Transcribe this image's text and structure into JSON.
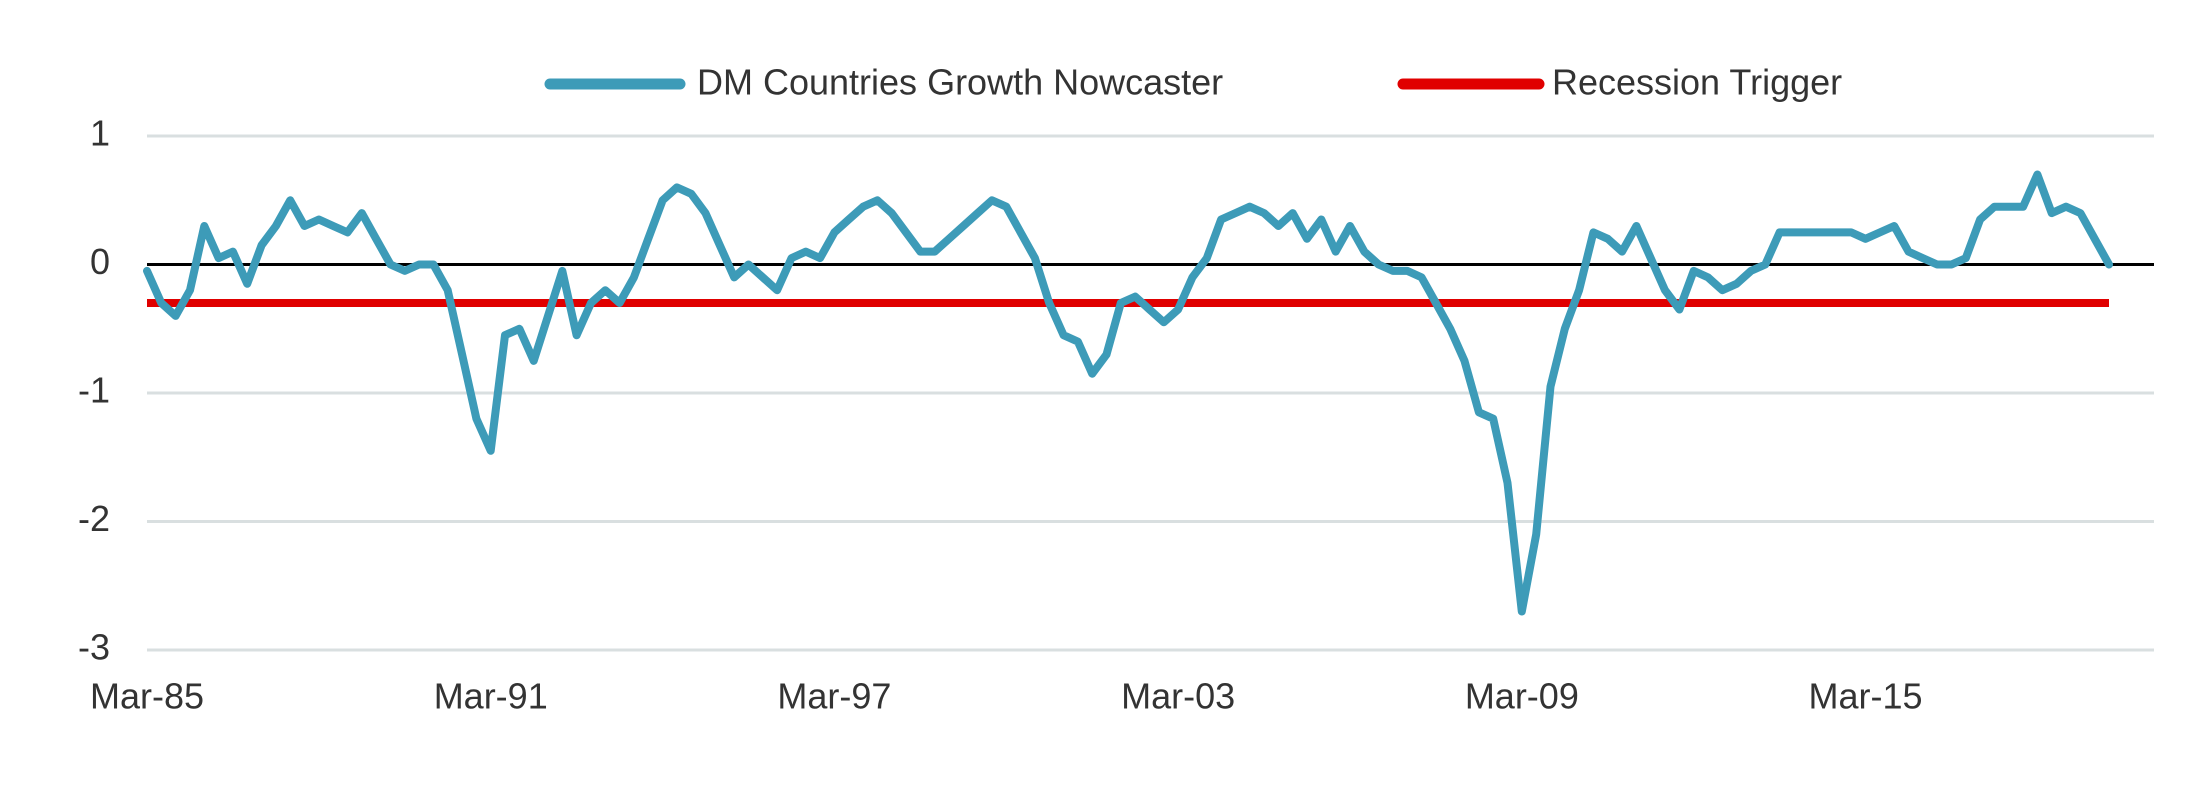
{
  "chart_data": {
    "type": "line",
    "categories": [
      "Mar-85",
      null,
      null,
      null,
      null,
      null,
      null,
      null,
      null,
      null,
      null,
      null,
      null,
      null,
      null,
      null,
      null,
      null,
      null,
      null,
      null,
      null,
      null,
      null,
      "Mar-91",
      null,
      null,
      null,
      null,
      null,
      null,
      null,
      null,
      null,
      null,
      null,
      null,
      null,
      null,
      null,
      null,
      null,
      null,
      null,
      null,
      null,
      null,
      null,
      "Mar-97",
      null,
      null,
      null,
      null,
      null,
      null,
      null,
      null,
      null,
      null,
      null,
      null,
      null,
      null,
      null,
      null,
      null,
      null,
      null,
      null,
      null,
      null,
      null,
      "Mar-03",
      null,
      null,
      null,
      null,
      null,
      null,
      null,
      null,
      null,
      null,
      null,
      null,
      null,
      null,
      null,
      null,
      null,
      null,
      null,
      null,
      null,
      null,
      null,
      "Mar-09",
      null,
      null,
      null,
      null,
      null,
      null,
      null,
      null,
      null,
      null,
      null,
      null,
      null,
      null,
      null,
      null,
      null,
      null,
      null,
      null,
      null,
      null,
      null,
      "Mar-15",
      null,
      null,
      null,
      null,
      null,
      null,
      null,
      null,
      null,
      null,
      null,
      null,
      null,
      null,
      null,
      null,
      null
    ],
    "series": [
      {
        "name": "DM Countries Growth Nowcaster",
        "color": "#3d9bb8",
        "values": [
          -0.05,
          -0.3,
          -0.4,
          -0.2,
          0.3,
          0.05,
          0.1,
          -0.15,
          0.15,
          0.3,
          0.5,
          0.3,
          0.35,
          0.3,
          0.25,
          0.4,
          0.2,
          0.0,
          -0.05,
          0.0,
          0.0,
          -0.2,
          -0.7,
          -1.2,
          -1.45,
          -0.55,
          -0.5,
          -0.75,
          -0.4,
          -0.05,
          -0.55,
          -0.3,
          -0.2,
          -0.3,
          -0.1,
          0.2,
          0.5,
          0.6,
          0.55,
          0.4,
          0.15,
          -0.1,
          0.0,
          -0.1,
          -0.2,
          0.05,
          0.1,
          0.05,
          0.25,
          0.35,
          0.45,
          0.5,
          0.4,
          0.25,
          0.1,
          0.1,
          0.2,
          0.3,
          0.4,
          0.5,
          0.45,
          0.25,
          0.05,
          -0.3,
          -0.55,
          -0.6,
          -0.85,
          -0.7,
          -0.3,
          -0.25,
          -0.35,
          -0.45,
          -0.35,
          -0.1,
          0.05,
          0.35,
          0.4,
          0.45,
          0.4,
          0.3,
          0.4,
          0.2,
          0.35,
          0.1,
          0.3,
          0.1,
          0.0,
          -0.05,
          -0.05,
          -0.1,
          -0.3,
          -0.5,
          -0.75,
          -1.15,
          -1.2,
          -1.7,
          -2.7,
          -2.1,
          -0.95,
          -0.5,
          -0.2,
          0.25,
          0.2,
          0.1,
          0.3,
          0.05,
          -0.2,
          -0.35,
          -0.05,
          -0.1,
          -0.2,
          -0.15,
          -0.05,
          0.0,
          0.25,
          0.25,
          0.25,
          0.25,
          0.25,
          0.25,
          0.2,
          0.25,
          0.3,
          0.1,
          0.05,
          0.0,
          0.0,
          0.05,
          0.35,
          0.45,
          0.45,
          0.45,
          0.7,
          0.4,
          0.45,
          0.4,
          0.2,
          0.0
        ]
      }
    ],
    "threshold": {
      "name": "Recession Trigger",
      "color": "#e00000",
      "value": -0.3
    },
    "ylim": [
      -3,
      1
    ],
    "yticks": [
      -3,
      -2,
      -1,
      0,
      1
    ],
    "grid": true
  }
}
